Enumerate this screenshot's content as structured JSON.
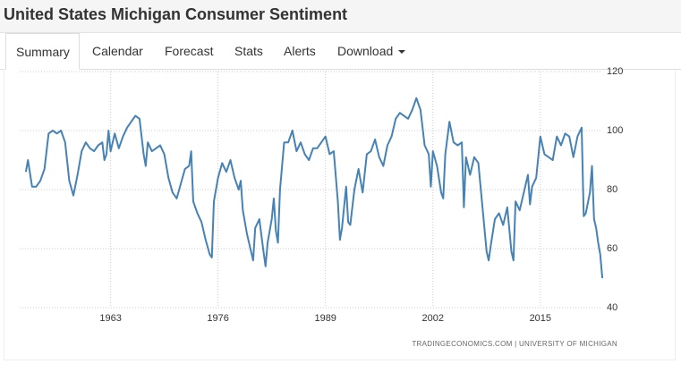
{
  "header": {
    "title": "United States Michigan Consumer Sentiment"
  },
  "tabs": [
    "Summary",
    "Calendar",
    "Forecast",
    "Stats",
    "Alerts",
    "Download"
  ],
  "chart_data": {
    "type": "line",
    "color": "#4682b4",
    "grid": true,
    "source": "TRADINGECONOMICS.COM | UNIVERSITY OF MICHIGAN",
    "xlim": [
      1952,
      2022.6
    ],
    "xticks": [
      1963,
      1976,
      1989,
      2002,
      2015
    ],
    "ylim": [
      40,
      120
    ],
    "yticks": [
      40,
      60,
      80,
      100,
      120
    ],
    "x": [
      1952.75,
      1953,
      1953.5,
      1954,
      1954.5,
      1955,
      1955.5,
      1956,
      1956.5,
      1957,
      1957.5,
      1958,
      1958.5,
      1959,
      1959.5,
      1960,
      1960.5,
      1961,
      1961.5,
      1962,
      1962.25,
      1962.5,
      1962.75,
      1963,
      1963.5,
      1964,
      1964.5,
      1965,
      1965.5,
      1966,
      1966.5,
      1967,
      1967.25,
      1967.5,
      1968,
      1968.5,
      1969,
      1969.5,
      1970,
      1970.5,
      1971,
      1971.5,
      1972,
      1972.5,
      1972.75,
      1973,
      1973.5,
      1974,
      1974.5,
      1975,
      1975.25,
      1975.5,
      1976,
      1976.5,
      1977,
      1977.5,
      1978,
      1978.5,
      1978.75,
      1979,
      1979.5,
      1980,
      1980.25,
      1980.5,
      1981,
      1981.5,
      1981.75,
      1982,
      1982.5,
      1982.75,
      1983,
      1983.25,
      1983.5,
      1984,
      1984.5,
      1985,
      1985.5,
      1986,
      1986.5,
      1987,
      1987.5,
      1988,
      1988.5,
      1989,
      1989.5,
      1990,
      1990.5,
      1990.75,
      1991,
      1991.5,
      1991.75,
      1992,
      1992.5,
      1993,
      1993.5,
      1994,
      1994.5,
      1995,
      1995.5,
      1996,
      1996.5,
      1997,
      1997.5,
      1998,
      1998.5,
      1999,
      1999.5,
      2000,
      2000.5,
      2001,
      2001.5,
      2001.75,
      2002,
      2002.5,
      2003,
      2003.25,
      2003.5,
      2004,
      2004.5,
      2005,
      2005.5,
      2005.75,
      2006,
      2006.5,
      2007,
      2007.5,
      2008,
      2008.5,
      2008.75,
      2009,
      2009.5,
      2010,
      2010.5,
      2011,
      2011.5,
      2011.75,
      2012,
      2012.5,
      2013,
      2013.5,
      2013.75,
      2014,
      2014.5,
      2015,
      2015.5,
      2016,
      2016.5,
      2017,
      2017.5,
      2018,
      2018.5,
      2019,
      2019.5,
      2020,
      2020.25,
      2020.5,
      2021,
      2021.25,
      2021.5,
      2021.75,
      2022,
      2022.25,
      2022.5
    ],
    "values": [
      86,
      90,
      81,
      81,
      83,
      87,
      99,
      100,
      99,
      100,
      96,
      83,
      78,
      85,
      93,
      96,
      94,
      93,
      95,
      96,
      90,
      92,
      100,
      93,
      99,
      94,
      98,
      101,
      103,
      105,
      104,
      92,
      88,
      96,
      93,
      94,
      95,
      92,
      84,
      79,
      77,
      82,
      87,
      88,
      93,
      76,
      72,
      69,
      63,
      58,
      57,
      76,
      84,
      89,
      86,
      90,
      84,
      80,
      83,
      73,
      65,
      59,
      56,
      67,
      70,
      59,
      54,
      62,
      70,
      77,
      66,
      62,
      80,
      96,
      96,
      100,
      93,
      96,
      92,
      90,
      94,
      94,
      96,
      98,
      92,
      93,
      76,
      63,
      67,
      81,
      69,
      68,
      80,
      87,
      79,
      92,
      93,
      97,
      91,
      88,
      95,
      98,
      104,
      106,
      105,
      104,
      107,
      111,
      107,
      95,
      92,
      81,
      93,
      88,
      79,
      77,
      92,
      103,
      96,
      95,
      96,
      74,
      91,
      85,
      91,
      89,
      74,
      59,
      56,
      61,
      70,
      72,
      68,
      74,
      59,
      56,
      76,
      73,
      79,
      85,
      75,
      81,
      84,
      98,
      92,
      91,
      90,
      98,
      95,
      99,
      98,
      91,
      98,
      101,
      71,
      72,
      79,
      88,
      70,
      67,
      62,
      58,
      50
    ]
  }
}
